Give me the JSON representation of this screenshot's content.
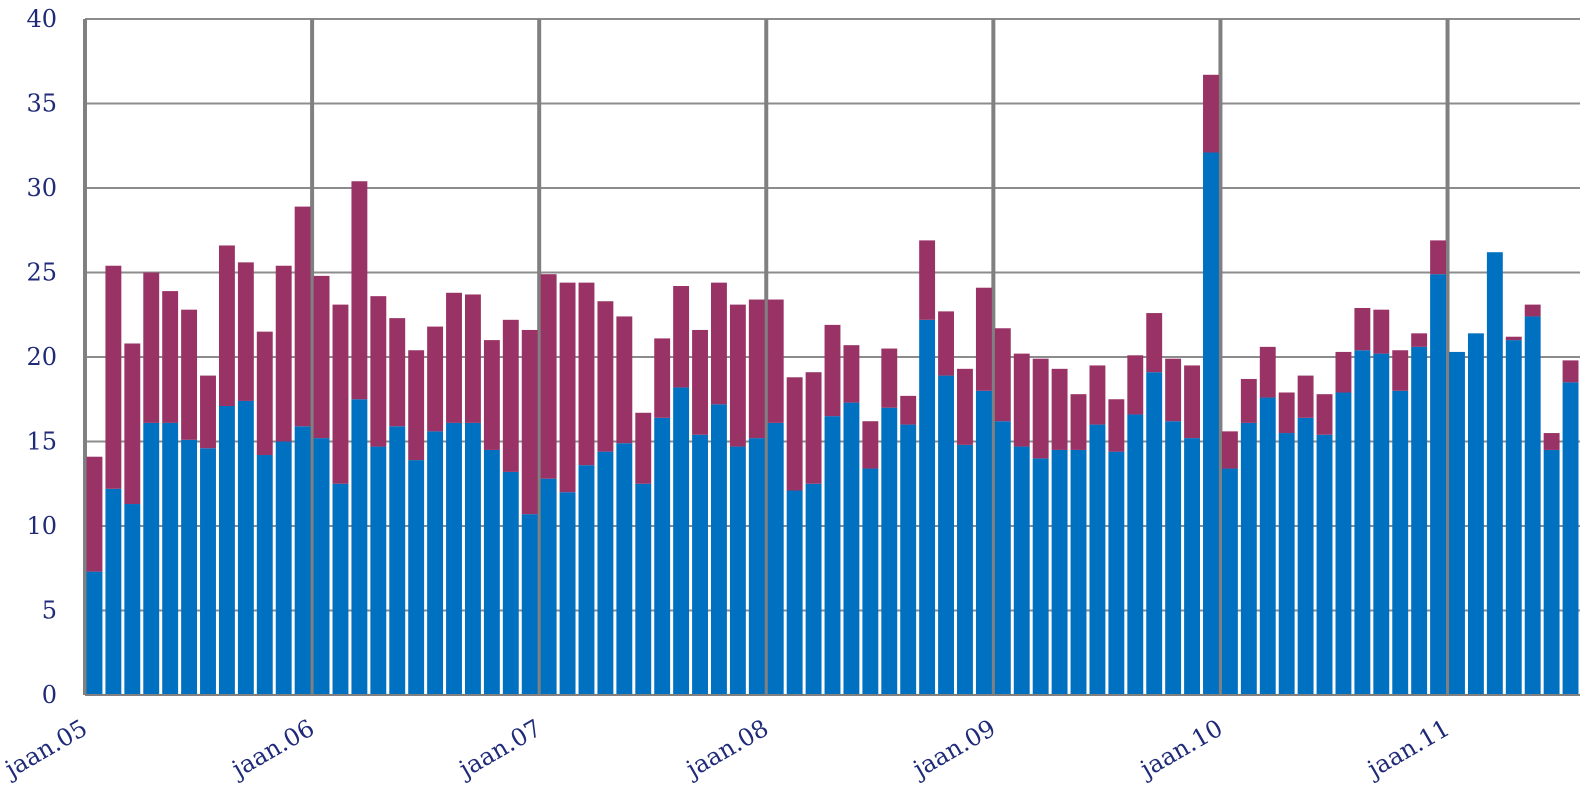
{
  "chart_data": {
    "type": "stacked_bar",
    "categories": [
      "jaan.05",
      null,
      null,
      null,
      null,
      null,
      null,
      null,
      null,
      null,
      null,
      null,
      "jaan.06",
      null,
      null,
      null,
      null,
      null,
      null,
      null,
      null,
      null,
      null,
      null,
      "jaan.07",
      null,
      null,
      null,
      null,
      null,
      null,
      null,
      null,
      null,
      null,
      null,
      "jaan.08",
      null,
      null,
      null,
      null,
      null,
      null,
      null,
      null,
      null,
      null,
      null,
      "jaan.09",
      null,
      null,
      null,
      null,
      null,
      null,
      null,
      null,
      null,
      null,
      null,
      "jaan.10",
      null,
      null,
      null,
      null,
      null,
      null,
      null,
      null,
      null,
      null,
      null,
      "jaan.11",
      null,
      null,
      null,
      null,
      null,
      null
    ],
    "series": [
      {
        "color": "#0070c0",
        "values": [
          7.3,
          12.2,
          11.3,
          16.1,
          16.1,
          15.1,
          14.6,
          17.1,
          17.4,
          14.2,
          15.0,
          15.9,
          15.2,
          12.5,
          17.5,
          14.7,
          15.9,
          13.9,
          15.6,
          16.1,
          16.1,
          14.5,
          13.2,
          10.7,
          12.8,
          12.0,
          13.6,
          14.4,
          14.9,
          12.5,
          16.4,
          18.2,
          15.4,
          17.2,
          14.7,
          15.2,
          16.1,
          12.1,
          12.5,
          16.5,
          17.3,
          13.4,
          17.0,
          16.0,
          22.2,
          18.9,
          14.8,
          18.0,
          16.2,
          14.7,
          14.0,
          14.5,
          14.5,
          16.0,
          14.4,
          16.6,
          19.1,
          16.2,
          15.2,
          32.1,
          13.4,
          16.1,
          17.6,
          15.5,
          16.4,
          15.4,
          17.9,
          20.4,
          20.2,
          18.0,
          20.6,
          24.9,
          20.3,
          21.4,
          26.2,
          21.0,
          22.4,
          14.5,
          18.5
        ]
      },
      {
        "color": "#993366",
        "values": [
          6.8,
          13.2,
          9.5,
          8.9,
          7.8,
          7.7,
          4.3,
          9.5,
          8.2,
          7.3,
          10.4,
          13.0,
          9.6,
          10.6,
          12.9,
          8.9,
          6.4,
          6.5,
          6.2,
          7.7,
          7.6,
          6.5,
          9.0,
          10.9,
          12.1,
          12.4,
          10.8,
          8.9,
          7.5,
          4.2,
          4.7,
          6.0,
          6.2,
          7.2,
          8.4,
          8.2,
          7.3,
          6.7,
          6.6,
          5.4,
          3.4,
          2.8,
          3.5,
          1.7,
          4.7,
          3.8,
          4.5,
          6.1,
          5.5,
          5.5,
          5.9,
          4.8,
          3.3,
          3.5,
          3.1,
          3.5,
          3.5,
          3.7,
          4.3,
          4.6,
          2.2,
          2.6,
          3.0,
          2.4,
          2.5,
          2.4,
          2.4,
          2.5,
          2.6,
          2.4,
          0.8,
          2.0,
          0,
          0,
          0,
          0.2,
          0.7,
          1.0,
          1.3
        ]
      }
    ],
    "ylim": [
      0,
      40
    ],
    "yticks": [
      0,
      5,
      10,
      15,
      20,
      25,
      30,
      35,
      40
    ],
    "grid": true
  }
}
